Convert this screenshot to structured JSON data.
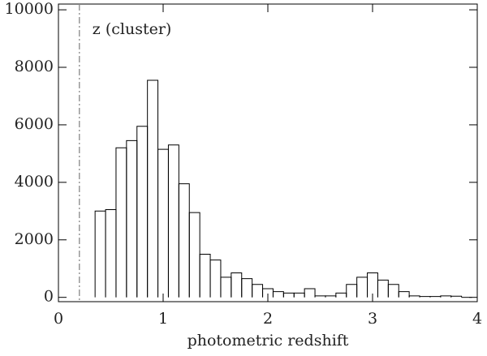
{
  "chart_data": {
    "type": "histogram",
    "xlabel": "photometric redshift",
    "bins": [
      0.35,
      0.45,
      0.55,
      0.65,
      0.75,
      0.85,
      0.95,
      1.05,
      1.15,
      1.25,
      1.35,
      1.45,
      1.55,
      1.65,
      1.75,
      1.85,
      1.95,
      2.05,
      2.15,
      2.25,
      2.35,
      2.45,
      2.55,
      2.65,
      2.75,
      2.85,
      2.95,
      3.05,
      3.15,
      3.25,
      3.35,
      3.45,
      3.55,
      3.65,
      3.75,
      3.85,
      3.95
    ],
    "values": [
      3000,
      3050,
      5200,
      5450,
      5950,
      7550,
      5150,
      5300,
      3950,
      2950,
      1500,
      1300,
      700,
      850,
      650,
      450,
      300,
      200,
      150,
      150,
      300,
      50,
      50,
      150,
      450,
      700,
      850,
      600,
      450,
      200,
      50,
      30,
      30,
      50,
      40,
      0
    ],
    "color": "#000000",
    "xlim": [
      0,
      4
    ],
    "xticks": [
      0,
      1,
      2,
      3,
      4
    ],
    "ylim": [
      -150,
      10200
    ],
    "yticks": [
      0,
      2000,
      4000,
      6000,
      8000,
      10000
    ],
    "vline": {
      "x": 0.2,
      "label": "z (cluster)",
      "color": "#888888"
    }
  }
}
